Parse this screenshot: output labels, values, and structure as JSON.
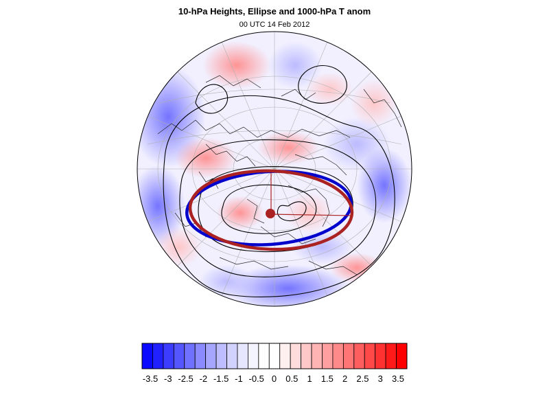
{
  "title": "10-hPa Heights, Ellipse and 1000-hPa T anom",
  "subtitle": "00 UTC 14 Feb 2012",
  "colorbar": {
    "tick_labels": [
      "-3.5",
      "-3",
      "-2.5",
      "-2",
      "-1.5",
      "-1",
      "-0.5",
      "0",
      "0.5",
      "1",
      "1.5",
      "2",
      "2.5",
      "3",
      "3.5"
    ],
    "colors": [
      "#0a0aff",
      "#2121ff",
      "#3c3cff",
      "#5656ff",
      "#7171ff",
      "#8b8bff",
      "#a6a6ff",
      "#bdbdff",
      "#d2d2ff",
      "#e6e6ff",
      "#f4f4ff",
      "#ffffff",
      "#ffffff",
      "#fff0f0",
      "#ffdcdc",
      "#ffc8c8",
      "#ffb4b4",
      "#ff9f9f",
      "#ff8a8a",
      "#ff7474",
      "#ff5e5e",
      "#ff4848",
      "#ff3232",
      "#ff1a1a",
      "#ff0000"
    ]
  },
  "map": {
    "projection": "orthographic-polar",
    "anomaly_field": "1000-hPa temperature anomaly",
    "contour_field": "10-hPa geopotential height",
    "ellipse_colors": {
      "blue": "#0000cc",
      "red": "#aa2222"
    }
  }
}
